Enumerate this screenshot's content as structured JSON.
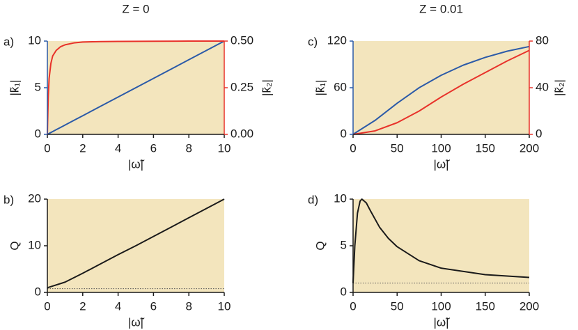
{
  "chart_data": [
    {
      "type": "line",
      "title": "Z = 0",
      "label": "a)",
      "xlabel": "|ω̃|",
      "ylabel": "|k̃₁|",
      "y2label": "|k̃₂|",
      "x": [
        0,
        0.05,
        0.1,
        0.2,
        0.3,
        0.5,
        0.75,
        1,
        1.5,
        2,
        3,
        4,
        6,
        8,
        10
      ],
      "series": [
        {
          "color": "#2b5aa8",
          "values": [
            0,
            0.05,
            0.1,
            0.2,
            0.3,
            0.5,
            0.75,
            1,
            1.5,
            2,
            3,
            4,
            6,
            8,
            10
          ]
        },
        {
          "color": "#e8322a",
          "axis": "y2",
          "values": [
            0,
            0.2,
            0.3,
            0.38,
            0.42,
            0.45,
            0.47,
            0.48,
            0.49,
            0.495,
            0.497,
            0.498,
            0.499,
            0.5,
            0.5
          ]
        }
      ],
      "xlim": [
        0,
        10
      ],
      "xticks": [
        0,
        2,
        4,
        6,
        8,
        10
      ],
      "ylim": [
        0,
        10
      ],
      "yticks": [
        0,
        5,
        10
      ],
      "y2lim": [
        0,
        0.5
      ],
      "y2ticks": [
        {
          "value": 0,
          "label": "0.00"
        },
        {
          "value": 0.25,
          "label": "0.25"
        },
        {
          "value": 0.5,
          "label": "0.50"
        }
      ]
    },
    {
      "type": "line",
      "label": "b)",
      "xlabel": "|ω̃|",
      "ylabel": "Q",
      "x": [
        0,
        1,
        2,
        3,
        4,
        5,
        6,
        7,
        8,
        9,
        10
      ],
      "series": [
        {
          "color": "#1a1a1a",
          "values": [
            1,
            2.2,
            4.1,
            6.1,
            8.1,
            10,
            12,
            14,
            16,
            18,
            20
          ]
        }
      ],
      "hline": 0.8,
      "xlim": [
        0,
        10
      ],
      "xticks": [
        0,
        2,
        4,
        6,
        8,
        10
      ],
      "ylim": [
        0,
        20
      ],
      "yticks": [
        0,
        10,
        20
      ]
    },
    {
      "type": "line",
      "title": "Z = 0.01",
      "label": "c)",
      "xlabel": "|ω̃|",
      "ylabel": "|k̃₁|",
      "y2label": "|k̃₂|",
      "x": [
        0,
        25,
        50,
        75,
        100,
        125,
        150,
        175,
        200
      ],
      "series": [
        {
          "color": "#2b5aa8",
          "values": [
            0,
            18,
            40,
            60,
            76,
            89,
            99,
            107,
            113
          ]
        },
        {
          "color": "#e8322a",
          "axis": "y2",
          "values": [
            0,
            3,
            10,
            20,
            32,
            43,
            53,
            63,
            72
          ]
        }
      ],
      "xlim": [
        0,
        200
      ],
      "xticks": [
        0,
        50,
        100,
        150,
        200
      ],
      "ylim": [
        0,
        120
      ],
      "yticks": [
        0,
        60,
        120
      ],
      "y2lim": [
        0,
        80
      ],
      "y2ticks": [
        0,
        40,
        80
      ]
    },
    {
      "type": "line",
      "label": "d)",
      "xlabel": "|ω̃|",
      "ylabel": "Q",
      "x": [
        0,
        2,
        5,
        8,
        10,
        15,
        20,
        30,
        40,
        50,
        75,
        100,
        150,
        200
      ],
      "series": [
        {
          "color": "#1a1a1a",
          "values": [
            1,
            5,
            8.5,
            9.8,
            10,
            9.6,
            8.7,
            7,
            5.8,
            4.9,
            3.4,
            2.6,
            1.9,
            1.6
          ]
        }
      ],
      "hline": 1,
      "xlim": [
        0,
        200
      ],
      "xticks": [
        0,
        50,
        100,
        150,
        200
      ],
      "ylim": [
        0,
        10
      ],
      "yticks": [
        0,
        5,
        10
      ]
    }
  ]
}
